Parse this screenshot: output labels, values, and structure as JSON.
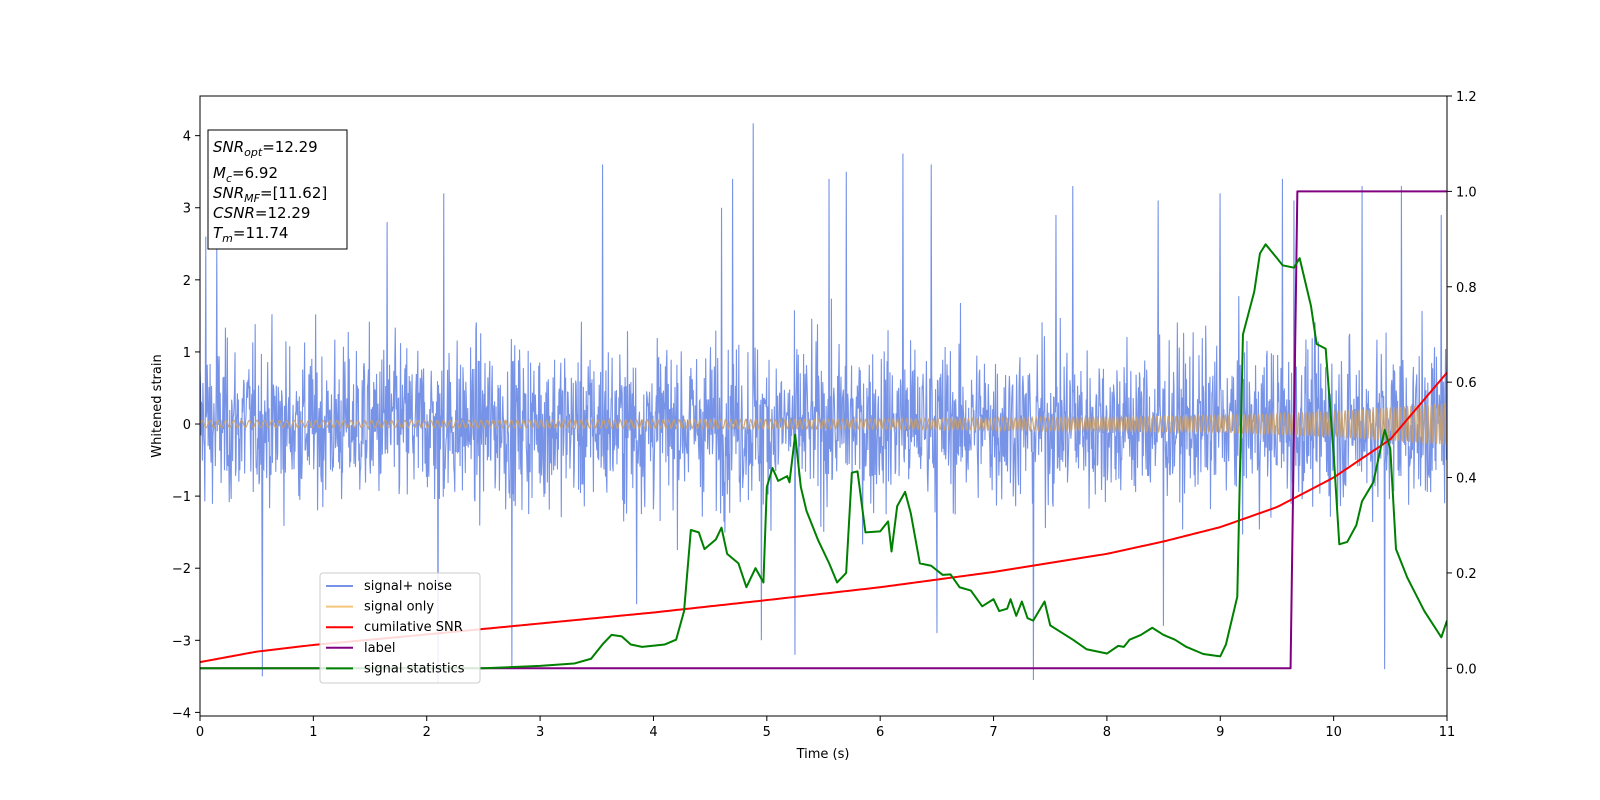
{
  "chart_data": {
    "type": "line",
    "xlabel": "Time (s)",
    "ylabel": "Whitened strain",
    "xlim": [
      0,
      11
    ],
    "ylim": [
      -4.05,
      4.55
    ],
    "y2lim": [
      -0.1,
      1.2
    ],
    "x_ticks": [
      "0",
      "1",
      "2",
      "3",
      "4",
      "5",
      "6",
      "7",
      "8",
      "9",
      "10",
      "11"
    ],
    "y_ticks": [
      "−4",
      "−3",
      "−2",
      "−1",
      "0",
      "1",
      "2",
      "3",
      "4"
    ],
    "y2_ticks": [
      "0.0",
      "0.2",
      "0.4",
      "0.6",
      "0.8",
      "1.0",
      "1.2"
    ],
    "info_box": {
      "snr_opt": {
        "main": "SNR",
        "sub": "opt",
        "value": "=12.29"
      },
      "mc": {
        "main": "M",
        "sub": "c",
        "value": "=6.92"
      },
      "snr_mf": {
        "main": "SNR",
        "sub": "MF",
        "value": "=[11.62]"
      },
      "csnr": {
        "main": "CSNR",
        "value": "=12.29"
      },
      "tm": {
        "main": "T",
        "sub": "m",
        "value": "=11.74"
      }
    },
    "legend": {
      "placement": "lower-left",
      "entries": [
        {
          "label": "signal+ noise",
          "color": "#7793e8"
        },
        {
          "label": "signal only",
          "color": "#f5c57a"
        },
        {
          "label": "cumilative SNR",
          "color": "#ff0000"
        },
        {
          "label": "label",
          "color": "#800080"
        },
        {
          "label": "signal statistics",
          "color": "#008000"
        }
      ]
    },
    "series": [
      {
        "name": "signal+ noise",
        "axis": "left",
        "color": "#7793e8",
        "description": "noisy whitened strain; spread within roughly ±1.5 with spikes up to 4.17 and down to -3.6",
        "peaks": [
          [
            0.05,
            2.6
          ],
          [
            0.15,
            2.5
          ],
          [
            0.55,
            -3.5
          ],
          [
            1.65,
            2.8
          ],
          [
            2.1,
            -3.6
          ],
          [
            2.15,
            3.2
          ],
          [
            2.75,
            -3.4
          ],
          [
            3.55,
            3.6
          ],
          [
            3.85,
            -2.5
          ],
          [
            4.6,
            3.0
          ],
          [
            4.7,
            3.4
          ],
          [
            4.88,
            4.17
          ],
          [
            4.95,
            -3.0
          ],
          [
            5.25,
            -3.2
          ],
          [
            5.55,
            3.4
          ],
          [
            5.7,
            3.5
          ],
          [
            6.2,
            3.75
          ],
          [
            6.45,
            3.6
          ],
          [
            6.5,
            -2.9
          ],
          [
            7.35,
            -3.55
          ],
          [
            7.55,
            2.9
          ],
          [
            7.7,
            3.3
          ],
          [
            8.45,
            3.1
          ],
          [
            8.5,
            -2.8
          ],
          [
            9.0,
            3.2
          ],
          [
            9.55,
            3.4
          ],
          [
            9.65,
            3.1
          ],
          [
            10.25,
            3.3
          ],
          [
            10.45,
            -3.4
          ],
          [
            10.6,
            3.3
          ],
          [
            10.95,
            2.9
          ]
        ]
      },
      {
        "name": "signal only",
        "axis": "left",
        "color": "#f5c57a",
        "envelope": [
          [
            0,
            0.05
          ],
          [
            2,
            0.05
          ],
          [
            4,
            0.06
          ],
          [
            6,
            0.07
          ],
          [
            8,
            0.1
          ],
          [
            9,
            0.12
          ],
          [
            10,
            0.18
          ],
          [
            10.5,
            0.23
          ],
          [
            11,
            0.3
          ]
        ]
      },
      {
        "name": "cumilative SNR",
        "axis": "right",
        "color": "#ff0000",
        "points": [
          [
            0,
            0.013
          ],
          [
            0.5,
            0.035
          ],
          [
            1,
            0.049
          ],
          [
            2,
            0.071
          ],
          [
            3,
            0.094
          ],
          [
            4,
            0.117
          ],
          [
            5,
            0.143
          ],
          [
            6,
            0.17
          ],
          [
            7,
            0.202
          ],
          [
            8,
            0.24
          ],
          [
            8.5,
            0.266
          ],
          [
            9,
            0.296
          ],
          [
            9.5,
            0.338
          ],
          [
            10,
            0.4
          ],
          [
            10.5,
            0.48
          ],
          [
            11,
            0.62
          ]
        ]
      },
      {
        "name": "label",
        "axis": "right",
        "color": "#800080",
        "points": [
          [
            0,
            0.0
          ],
          [
            9.62,
            0.0
          ],
          [
            9.68,
            1.0
          ],
          [
            11,
            1.0
          ]
        ]
      },
      {
        "name": "signal statistics",
        "axis": "right",
        "color": "#008000",
        "points": [
          [
            0,
            0.0
          ],
          [
            2.5,
            0.0
          ],
          [
            3.0,
            0.005
          ],
          [
            3.3,
            0.01
          ],
          [
            3.45,
            0.02
          ],
          [
            3.55,
            0.05
          ],
          [
            3.63,
            0.07
          ],
          [
            3.72,
            0.067
          ],
          [
            3.8,
            0.05
          ],
          [
            3.9,
            0.045
          ],
          [
            4.1,
            0.05
          ],
          [
            4.2,
            0.06
          ],
          [
            4.27,
            0.12
          ],
          [
            4.33,
            0.29
          ],
          [
            4.4,
            0.285
          ],
          [
            4.45,
            0.25
          ],
          [
            4.55,
            0.27
          ],
          [
            4.6,
            0.295
          ],
          [
            4.65,
            0.24
          ],
          [
            4.75,
            0.22
          ],
          [
            4.82,
            0.17
          ],
          [
            4.9,
            0.21
          ],
          [
            4.97,
            0.18
          ],
          [
            5.0,
            0.38
          ],
          [
            5.05,
            0.42
          ],
          [
            5.1,
            0.393
          ],
          [
            5.18,
            0.403
          ],
          [
            5.2,
            0.39
          ],
          [
            5.25,
            0.49
          ],
          [
            5.3,
            0.38
          ],
          [
            5.35,
            0.33
          ],
          [
            5.45,
            0.27
          ],
          [
            5.55,
            0.22
          ],
          [
            5.62,
            0.18
          ],
          [
            5.7,
            0.2
          ],
          [
            5.75,
            0.41
          ],
          [
            5.8,
            0.413
          ],
          [
            5.87,
            0.285
          ],
          [
            6.0,
            0.287
          ],
          [
            6.07,
            0.308
          ],
          [
            6.1,
            0.245
          ],
          [
            6.15,
            0.34
          ],
          [
            6.22,
            0.37
          ],
          [
            6.27,
            0.325
          ],
          [
            6.35,
            0.22
          ],
          [
            6.45,
            0.215
          ],
          [
            6.55,
            0.196
          ],
          [
            6.62,
            0.197
          ],
          [
            6.7,
            0.17
          ],
          [
            6.8,
            0.163
          ],
          [
            6.9,
            0.13
          ],
          [
            7.0,
            0.145
          ],
          [
            7.05,
            0.12
          ],
          [
            7.12,
            0.125
          ],
          [
            7.15,
            0.145
          ],
          [
            7.2,
            0.11
          ],
          [
            7.25,
            0.14
          ],
          [
            7.3,
            0.105
          ],
          [
            7.35,
            0.1
          ],
          [
            7.45,
            0.14
          ],
          [
            7.5,
            0.09
          ],
          [
            7.6,
            0.075
          ],
          [
            7.7,
            0.06
          ],
          [
            7.82,
            0.04
          ],
          [
            8.0,
            0.031
          ],
          [
            8.1,
            0.047
          ],
          [
            8.15,
            0.045
          ],
          [
            8.2,
            0.06
          ],
          [
            8.3,
            0.07
          ],
          [
            8.4,
            0.085
          ],
          [
            8.5,
            0.07
          ],
          [
            8.6,
            0.06
          ],
          [
            8.7,
            0.045
          ],
          [
            8.85,
            0.03
          ],
          [
            9.0,
            0.025
          ],
          [
            9.05,
            0.05
          ],
          [
            9.15,
            0.15
          ],
          [
            9.2,
            0.7
          ],
          [
            9.3,
            0.79
          ],
          [
            9.35,
            0.87
          ],
          [
            9.4,
            0.889
          ],
          [
            9.5,
            0.86
          ],
          [
            9.55,
            0.845
          ],
          [
            9.65,
            0.84
          ],
          [
            9.7,
            0.86
          ],
          [
            9.8,
            0.76
          ],
          [
            9.85,
            0.68
          ],
          [
            9.93,
            0.67
          ],
          [
            10.0,
            0.45
          ],
          [
            10.05,
            0.26
          ],
          [
            10.12,
            0.265
          ],
          [
            10.2,
            0.3
          ],
          [
            10.25,
            0.35
          ],
          [
            10.35,
            0.39
          ],
          [
            10.45,
            0.5
          ],
          [
            10.5,
            0.46
          ],
          [
            10.55,
            0.25
          ],
          [
            10.65,
            0.19
          ],
          [
            10.8,
            0.12
          ],
          [
            10.95,
            0.065
          ],
          [
            11.0,
            0.1
          ]
        ]
      }
    ]
  }
}
